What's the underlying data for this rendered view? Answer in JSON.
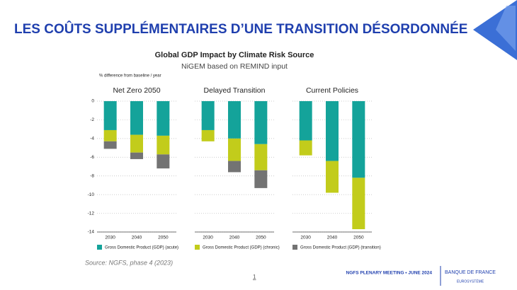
{
  "slide_title": "LES COÛTS SUPPLÉMENTAIRES D’UNE TRANSITION DÉSORDONNÉE",
  "source": "Source: NGFS, phase 4 (2023)",
  "footer": "NGFS PLENARY MEETING • JUNE 2024",
  "page_number": "1",
  "logo": {
    "name": "BANQUE DE FRANCE",
    "sub": "EUROSYSTÈME"
  },
  "chart_data": [
    {
      "type": "bar",
      "stacked": true,
      "title": "Global GDP Impact by Climate Risk Source",
      "subtitle": "NiGEM based on REMIND input",
      "y_label": "% difference from baseline / year",
      "panel_title": "Net Zero 2050",
      "categories": [
        "2030",
        "2040",
        "2050"
      ],
      "series": [
        {
          "name": "Gross Domestic Product (GDP) (acute)",
          "color": "#14a39a",
          "values": [
            -3.1,
            -3.6,
            -3.7
          ]
        },
        {
          "name": "Gross Domestic Product (GDP) (chronic)",
          "color": "#c2cc1b",
          "values": [
            -1.2,
            -1.9,
            -2.0
          ]
        },
        {
          "name": "Gross Domestic Product (GDP) (transition)",
          "color": "#737373",
          "values": [
            -0.8,
            -0.7,
            -1.5
          ]
        }
      ],
      "ylim": [
        -14,
        0
      ],
      "yticks": [
        0,
        -2,
        -4,
        -6,
        -8,
        -10,
        -12,
        -14
      ],
      "grid": true
    },
    {
      "type": "bar",
      "stacked": true,
      "panel_title": "Delayed Transition",
      "categories": [
        "2030",
        "2040",
        "2050"
      ],
      "series": [
        {
          "name": "Gross Domestic Product (GDP) (acute)",
          "color": "#14a39a",
          "values": [
            -3.1,
            -4.0,
            -4.6
          ]
        },
        {
          "name": "Gross Domestic Product (GDP) (chronic)",
          "color": "#c2cc1b",
          "values": [
            -1.2,
            -2.4,
            -2.8
          ]
        },
        {
          "name": "Gross Domestic Product (GDP) (transition)",
          "color": "#737373",
          "values": [
            0,
            -1.2,
            -1.9
          ]
        }
      ],
      "ylim": [
        -14,
        0
      ],
      "yticks": [
        0,
        -2,
        -4,
        -6,
        -8,
        -10,
        -12,
        -14
      ],
      "grid": true
    },
    {
      "type": "bar",
      "stacked": true,
      "panel_title": "Current Policies",
      "categories": [
        "2030",
        "2040",
        "2050"
      ],
      "series": [
        {
          "name": "Gross Domestic Product (GDP) (acute)",
          "color": "#14a39a",
          "values": [
            -4.2,
            -6.4,
            -8.2
          ]
        },
        {
          "name": "Gross Domestic Product (GDP) (chronic)",
          "color": "#c2cc1b",
          "values": [
            -1.6,
            -3.4,
            -5.5
          ]
        },
        {
          "name": "Gross Domestic Product (GDP) (transition)",
          "color": "#737373",
          "values": [
            0,
            0,
            0
          ]
        }
      ],
      "ylim": [
        -14,
        0
      ],
      "yticks": [
        0,
        -2,
        -4,
        -6,
        -8,
        -10,
        -12,
        -14
      ],
      "grid": true
    }
  ]
}
